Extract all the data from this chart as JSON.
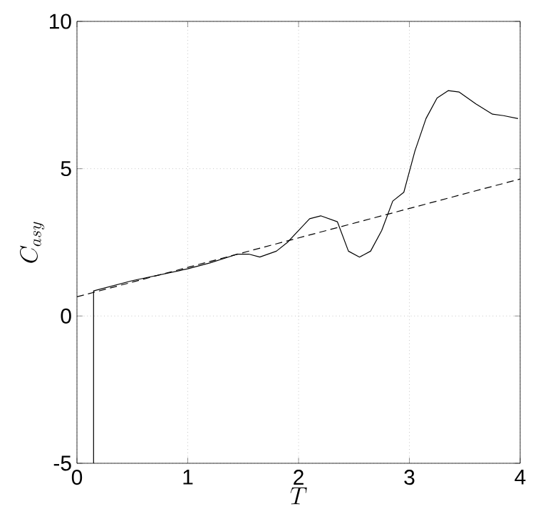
{
  "chart_data": {
    "type": "line",
    "xlabel": "T",
    "ylabel": "C_{asy}",
    "xlim": [
      0,
      4
    ],
    "ylim": [
      -5,
      10
    ],
    "xticks": [
      0,
      1,
      2,
      3,
      4
    ],
    "yticks": [
      -5,
      0,
      5,
      10
    ],
    "grid": true,
    "series": [
      {
        "color": "#000000",
        "line_style": "solid",
        "x": [
          0.15,
          0.15,
          0.5,
          1.0,
          1.2,
          1.45,
          1.55,
          1.65,
          1.8,
          1.9,
          2.0,
          2.1,
          2.2,
          2.35,
          2.45,
          2.55,
          2.65,
          2.75,
          2.85,
          2.95,
          3.05,
          3.15,
          3.25,
          3.35,
          3.45,
          3.6,
          3.75,
          3.85,
          3.98
        ],
        "values": [
          -5,
          0.85,
          1.2,
          1.6,
          1.8,
          2.1,
          2.1,
          2.0,
          2.2,
          2.5,
          2.9,
          3.3,
          3.4,
          3.2,
          2.2,
          2.0,
          2.2,
          2.9,
          3.9,
          4.2,
          5.6,
          6.7,
          7.4,
          7.65,
          7.6,
          7.2,
          6.85,
          6.8,
          6.7
        ]
      },
      {
        "color": "#000000",
        "line_style": "dashed",
        "x": [
          0,
          4
        ],
        "values": [
          0.65,
          4.65
        ]
      }
    ]
  }
}
